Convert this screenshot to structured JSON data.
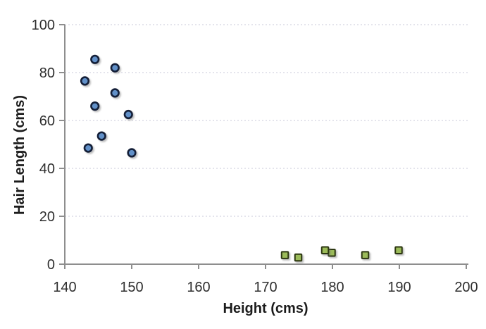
{
  "chart_data": {
    "type": "scatter",
    "title": "",
    "xlabel": "Height (cms)",
    "ylabel": "Hair Length (cms)",
    "xlim": [
      140,
      200
    ],
    "ylim": [
      0,
      100
    ],
    "x_ticks": [
      140,
      150,
      160,
      170,
      180,
      190,
      200
    ],
    "y_ticks": [
      0,
      20,
      40,
      60,
      80,
      100
    ],
    "grid": "horizontal-dotted",
    "legend_position": "none",
    "axis_color": "#8e8e8e",
    "gridline_color": "#dcdce6",
    "text_color": "#2e2e2e",
    "series": [
      {
        "name": "blue-circles",
        "marker": "circle",
        "fill": "#6190c8",
        "stroke": "#141f38",
        "points": [
          [
            144.5,
            85.5
          ],
          [
            147.5,
            82
          ],
          [
            143,
            76.5
          ],
          [
            147.5,
            71.5
          ],
          [
            144.5,
            66
          ],
          [
            149.5,
            62.5
          ],
          [
            145.5,
            53.5
          ],
          [
            143.5,
            48.5
          ],
          [
            150,
            46.5
          ]
        ]
      },
      {
        "name": "green-squares",
        "marker": "square",
        "fill": "#9bbb59",
        "stroke": "#2c3711",
        "points": [
          [
            173,
            3.5
          ],
          [
            175,
            2.5
          ],
          [
            180,
            4.5
          ],
          [
            179,
            5.5
          ],
          [
            185,
            3.5
          ],
          [
            190,
            5.5
          ]
        ]
      }
    ]
  }
}
